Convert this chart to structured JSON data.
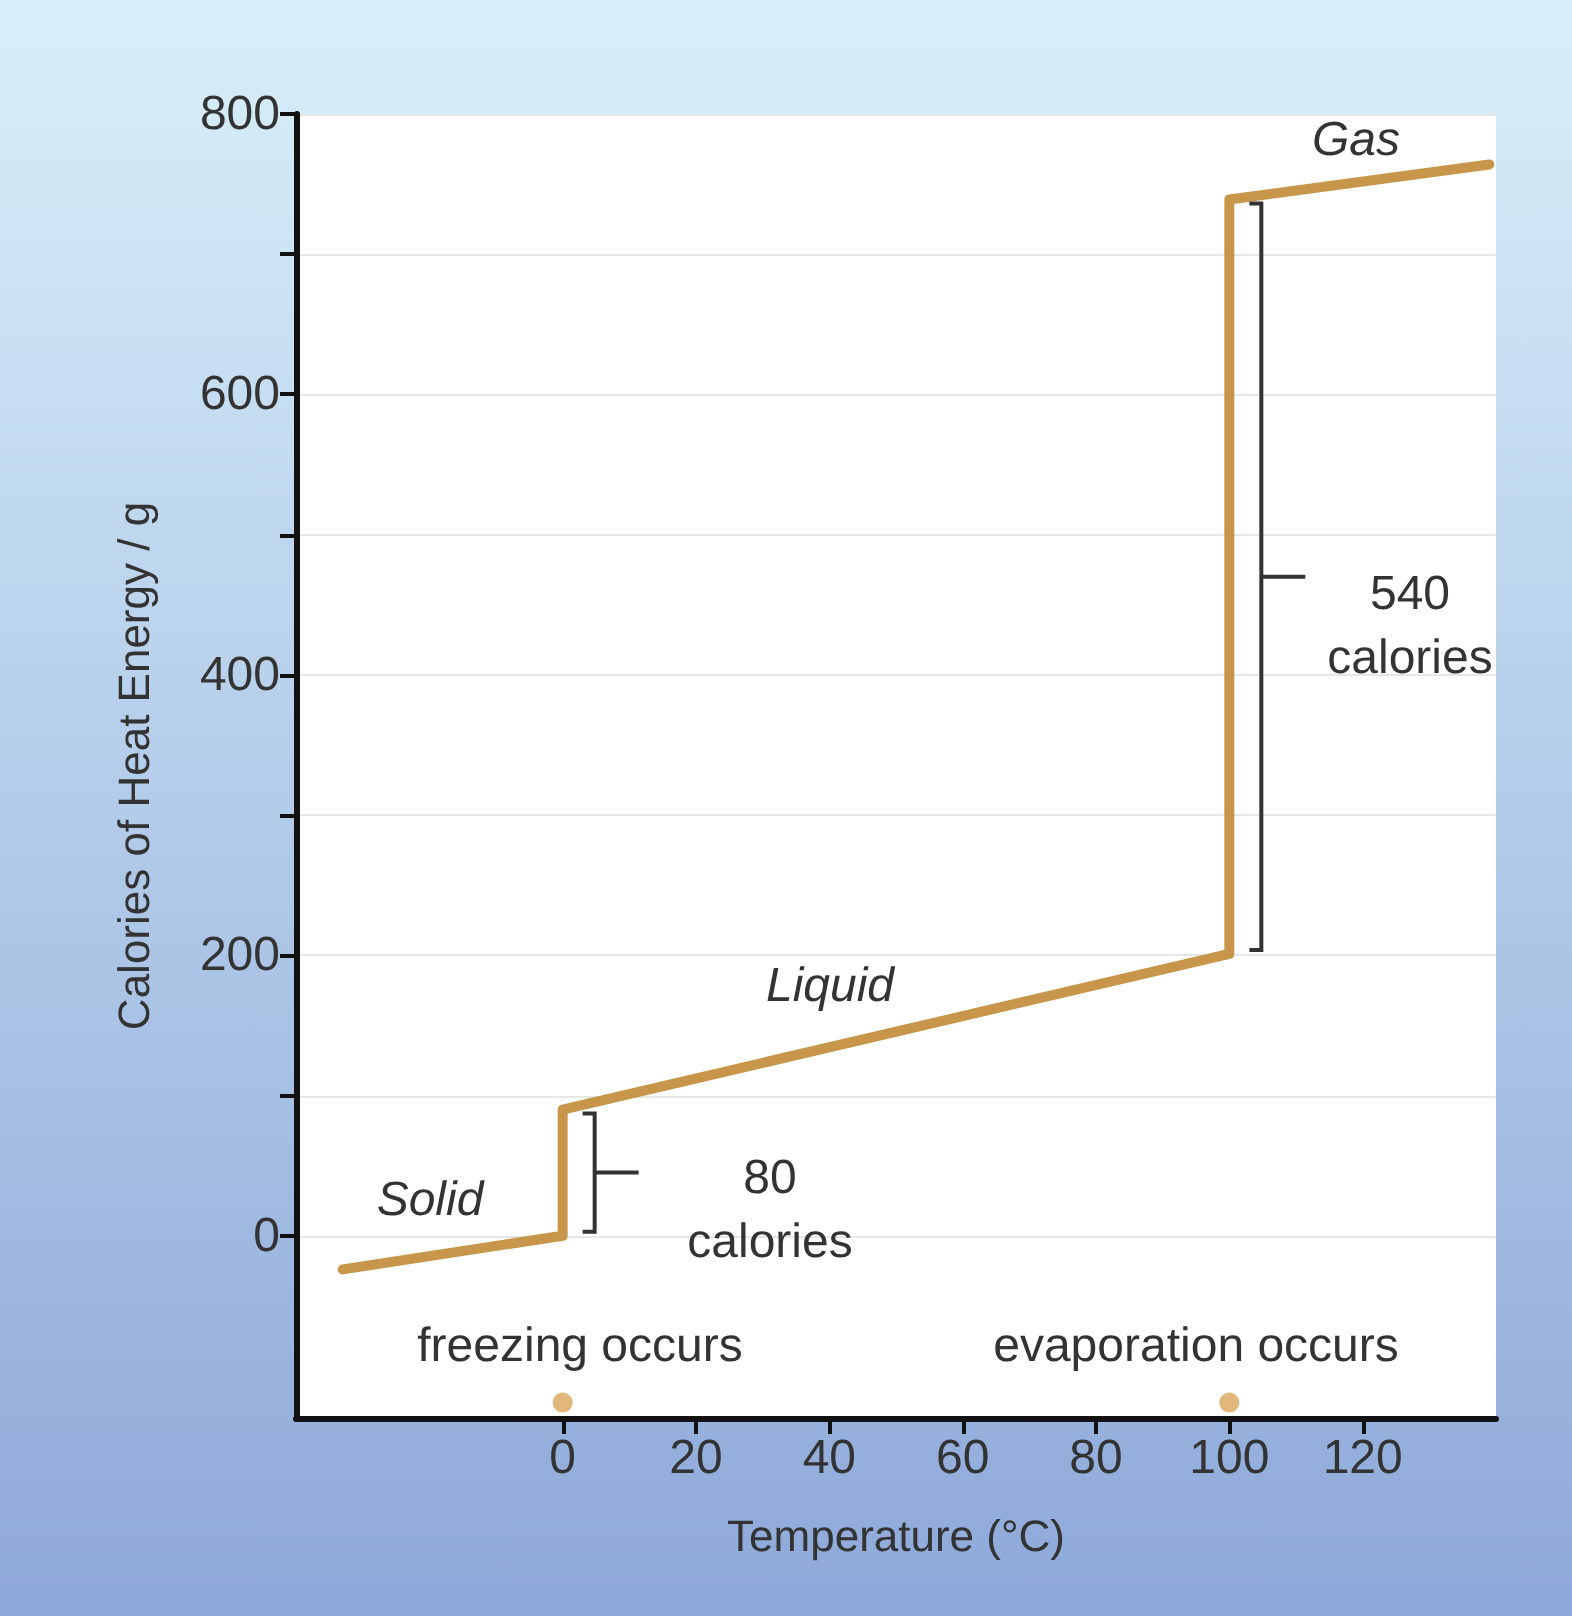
{
  "chart_data": {
    "type": "line",
    "xlabel": "Temperature (°C)",
    "ylabel": "Calories of Heat Energy / g",
    "xlim": [
      -40,
      140
    ],
    "xticks": [
      0,
      20,
      40,
      60,
      80,
      100,
      120
    ],
    "ylim": [
      -130,
      800
    ],
    "yticks": [
      0,
      {
        "value": 100,
        "label": null
      },
      200,
      {
        "value": 300,
        "label": null
      },
      400,
      {
        "value": 500,
        "label": null
      },
      600,
      {
        "value": 700,
        "label": null
      },
      800
    ],
    "grid": "y",
    "series": [
      {
        "color": "#c8964a",
        "x": [
          -33,
          0,
          0,
          100,
          100,
          139
        ],
        "values": [
          -24,
          0,
          90,
          201,
          739,
          764
        ]
      },
      {
        "type": "scatter",
        "color": "#d9a55a",
        "x": [
          0,
          100
        ],
        "values": [
          -119,
          -119
        ]
      }
    ],
    "annotations": [
      "Solid",
      "Liquid",
      "Gas",
      "80\ncalories",
      "540\ncalories",
      "freezing occurs",
      "evaporation occurs"
    ]
  }
}
